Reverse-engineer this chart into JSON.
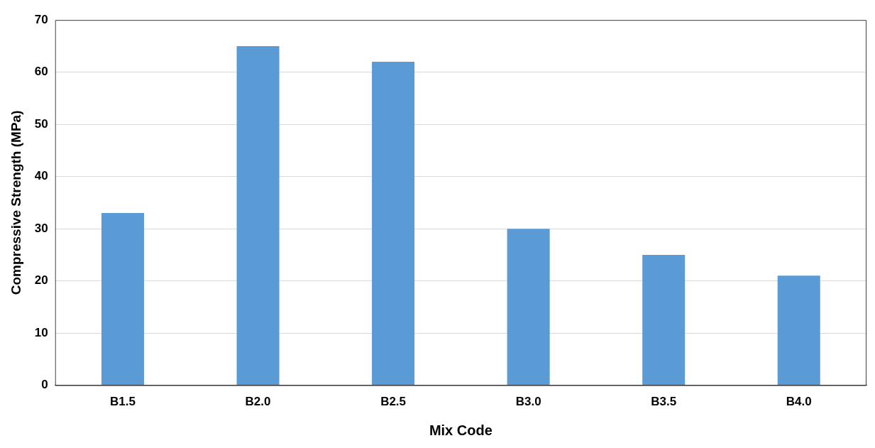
{
  "chart_data": {
    "type": "bar",
    "xlabel": "Mix Code",
    "ylabel": "Compressive Strength (MPa)",
    "categories": [
      "B1.5",
      "B2.0",
      "B2.5",
      "B3.0",
      "B3.5",
      "B4.0"
    ],
    "values": [
      33,
      65,
      62,
      30,
      25,
      21
    ],
    "color": "#5b9bd5",
    "ylim": [
      0,
      70
    ],
    "yticks": [
      0,
      10,
      20,
      30,
      40,
      50,
      60,
      70
    ],
    "grid": "y",
    "legend": false
  }
}
